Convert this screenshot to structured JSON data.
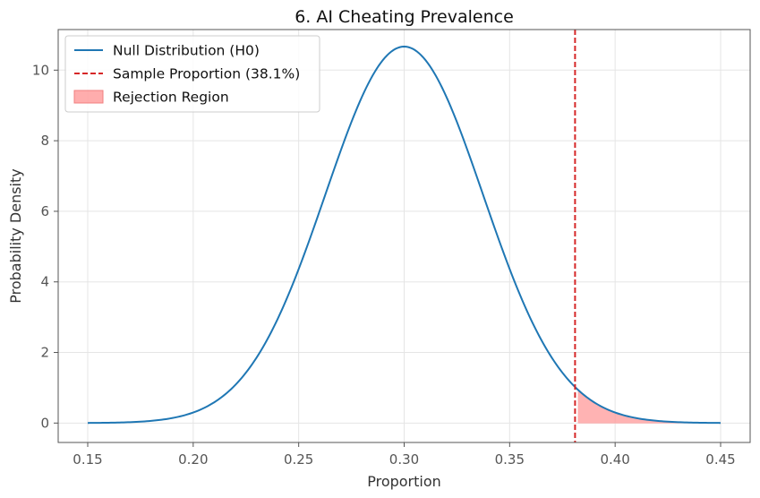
{
  "chart_data": {
    "type": "line",
    "title": "6. AI Cheating Prevalence",
    "xlabel": "Proportion",
    "ylabel": "Probability Density",
    "xlim": [
      0.136,
      0.464
    ],
    "ylim": [
      -0.55,
      11.15
    ],
    "x_ticks": [
      0.15,
      0.2,
      0.25,
      0.3,
      0.35,
      0.4,
      0.45
    ],
    "x_tick_labels": [
      "0.15",
      "0.20",
      "0.25",
      "0.30",
      "0.35",
      "0.40",
      "0.45"
    ],
    "y_ticks": [
      0,
      2,
      4,
      6,
      8,
      10
    ],
    "y_tick_labels": [
      "0",
      "2",
      "4",
      "6",
      "8",
      "10"
    ],
    "grid": true,
    "legend_position": "top-left",
    "null_distribution": {
      "name": "Null Distribution (H0)",
      "mean": 0.3,
      "std": 0.0374,
      "x_range": [
        0.15,
        0.45
      ],
      "color": "#1f77b4"
    },
    "sample_proportion": {
      "name": "Sample Proportion (38.1%)",
      "x": 0.381,
      "color": "#d62728"
    },
    "rejection_region": {
      "name": "Rejection Region",
      "x_range": [
        0.3825,
        0.45
      ],
      "color": "#ff9999"
    }
  }
}
